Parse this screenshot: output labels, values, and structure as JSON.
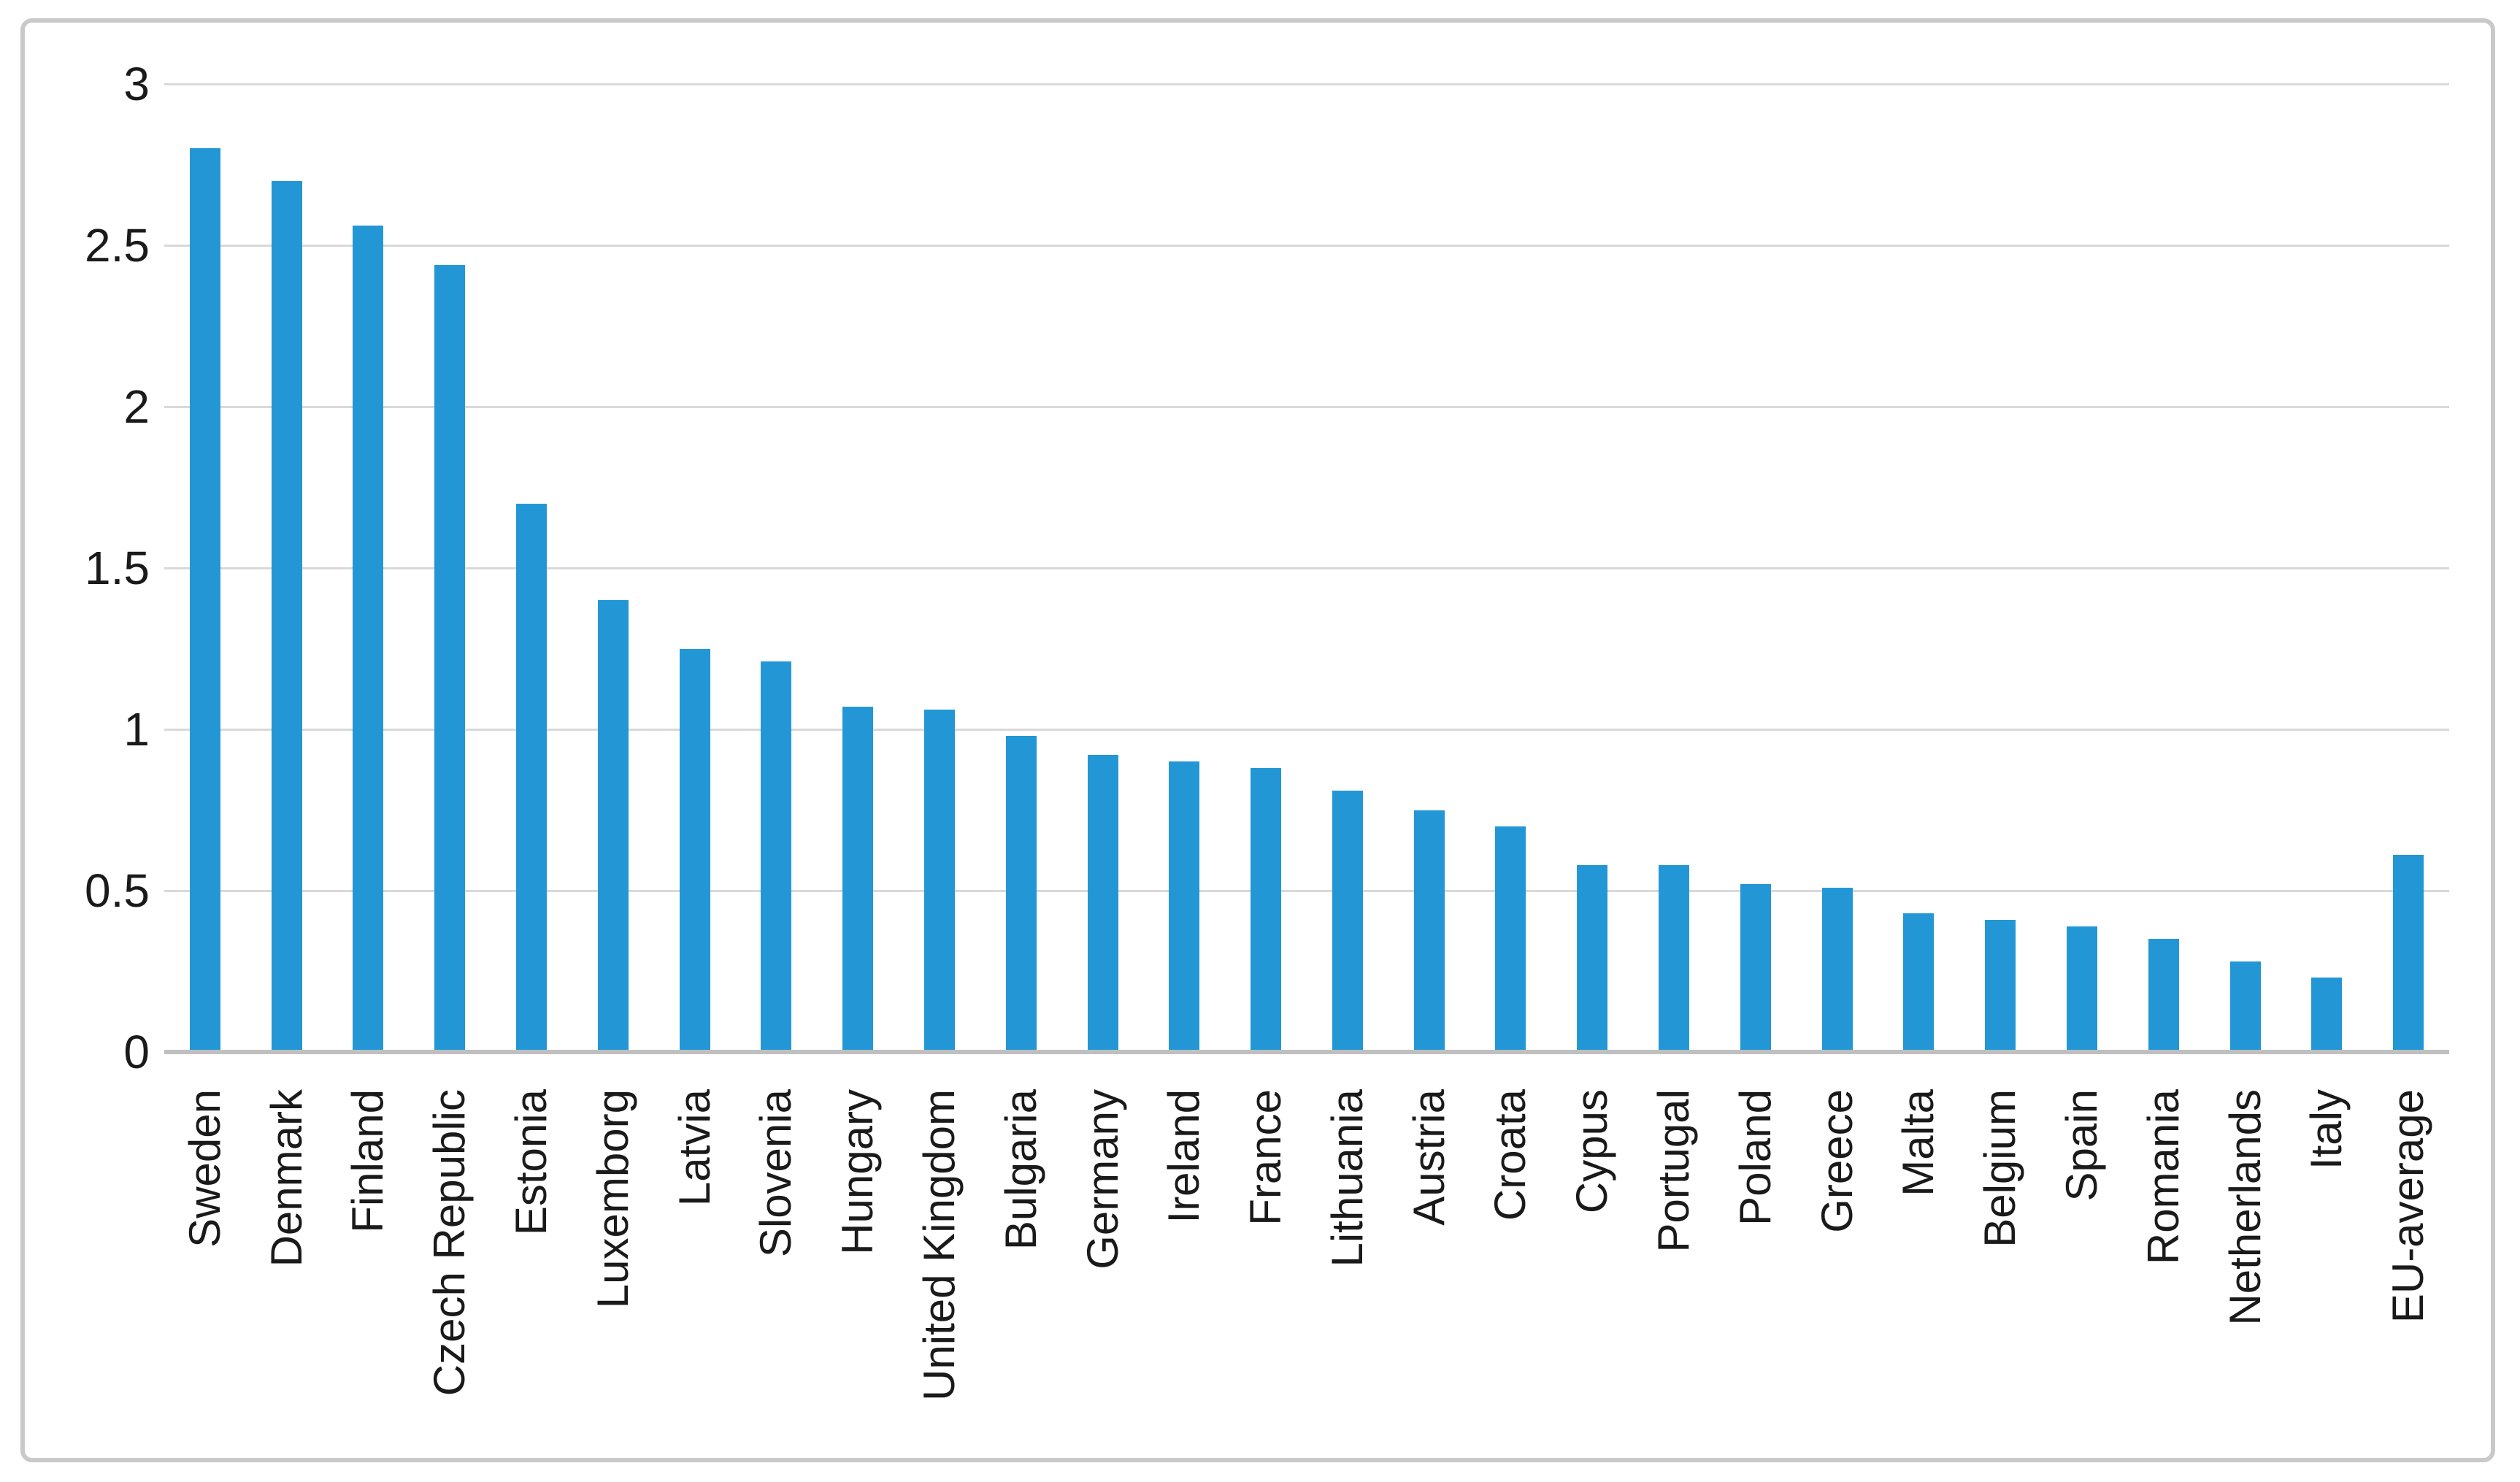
{
  "chart_data": {
    "type": "bar",
    "title": "",
    "xlabel": "",
    "ylabel": "",
    "categories": [
      "Sweden",
      "Denmark",
      "Finland",
      "Czech Republic",
      "Estonia",
      "Luxemborg",
      "Latvia",
      "Slovenia",
      "Hungary",
      "United Kingdom",
      "Bulgaria",
      "Germany",
      "Ireland",
      "France",
      "Lithuania",
      "Austria",
      "Croata",
      "Cypus",
      "Portugal",
      "Poland",
      "Greece",
      "Malta",
      "Belgium",
      "Spain",
      "Romania",
      "Netherlands",
      "Italy",
      "EU-average"
    ],
    "values": [
      2.8,
      2.7,
      2.56,
      2.44,
      1.7,
      1.4,
      1.25,
      1.21,
      1.07,
      1.06,
      0.98,
      0.92,
      0.9,
      0.88,
      0.81,
      0.75,
      0.7,
      0.58,
      0.58,
      0.52,
      0.51,
      0.43,
      0.41,
      0.39,
      0.35,
      0.28,
      0.23,
      0.61
    ],
    "ylim": [
      0,
      3
    ],
    "yticks": [
      0,
      0.5,
      1,
      1.5,
      2,
      2.5,
      3
    ],
    "ytick_labels": [
      "0",
      "0.5",
      "1",
      "1.5",
      "2",
      "2.5",
      "3"
    ],
    "grid": "horizontal",
    "legend": "none",
    "colors": {
      "bar": "#2397d6",
      "gridline": "#d9d9d9",
      "axis_line": "#bfbfbf",
      "frame_border": "#c9c9c9",
      "text": "#1a1a1a",
      "background": "#ffffff"
    }
  }
}
